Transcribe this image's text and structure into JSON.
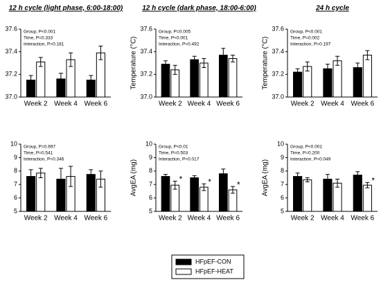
{
  "legend": [
    {
      "name": "HFpEF-CON",
      "color": "#000000"
    },
    {
      "name": "HFpEF-HEAT",
      "color": "#ffffff"
    }
  ],
  "chart_data": [
    {
      "type": "bar",
      "title": "12 h cycle (light phase, 6:00-18:00)",
      "categories": [
        "Week 2",
        "Week 4",
        "Week 6"
      ],
      "annotations": [
        "Group, P<0.001",
        "Time, P=0.333",
        "Interaction, P=0.181"
      ],
      "series": [
        {
          "values": [
            37.15,
            37.16,
            37.15
          ],
          "errors": [
            0.04,
            0.05,
            0.04
          ]
        },
        {
          "values": [
            37.31,
            37.33,
            37.39
          ],
          "errors": [
            0.04,
            0.06,
            0.06
          ]
        }
      ],
      "ylim": [
        37.0,
        37.6
      ],
      "yticks": [
        {
          "value": 37.0,
          "label": "37.0"
        },
        {
          "value": 37.2,
          "label": "37.2"
        },
        {
          "value": 37.4,
          "label": "37.4"
        },
        {
          "value": 37.6,
          "label": "37.6"
        }
      ]
    },
    {
      "type": "bar",
      "title": "12 h cycle (dark phase, 18:00-6:00)",
      "ylabel": "Temperature (°C)",
      "categories": [
        "Week 2",
        "Week 4",
        "Week 6"
      ],
      "annotations": [
        "Group, P=0.005",
        "Time, P<0.001",
        "Interaction, P=0.492"
      ],
      "series": [
        {
          "values": [
            37.29,
            37.33,
            37.37
          ],
          "errors": [
            0.03,
            0.03,
            0.06
          ]
        },
        {
          "values": [
            37.24,
            37.3,
            37.34
          ],
          "errors": [
            0.04,
            0.04,
            0.03
          ]
        }
      ],
      "ylim": [
        37.0,
        37.6
      ],
      "yticks": [
        {
          "value": 37.0,
          "label": "37.0"
        },
        {
          "value": 37.2,
          "label": "37.2"
        },
        {
          "value": 37.4,
          "label": "37.4"
        },
        {
          "value": 37.6,
          "label": "37.6"
        }
      ]
    },
    {
      "type": "bar",
      "title": "24 h cycle",
      "ylabel": "Temperature (°C)",
      "categories": [
        "Week 2",
        "Week 4",
        "Week 6"
      ],
      "annotations": [
        "Group, P<0.001",
        "Time, P=0.002",
        "Interaction, P=0.197"
      ],
      "series": [
        {
          "values": [
            37.22,
            37.25,
            37.26
          ],
          "errors": [
            0.03,
            0.04,
            0.04
          ]
        },
        {
          "values": [
            37.27,
            37.32,
            37.37
          ],
          "errors": [
            0.04,
            0.04,
            0.04
          ]
        }
      ],
      "ylim": [
        37.0,
        37.6
      ],
      "yticks": [
        {
          "value": 37.0,
          "label": "37.0"
        },
        {
          "value": 37.2,
          "label": "37.2"
        },
        {
          "value": 37.4,
          "label": "37.4"
        },
        {
          "value": 37.6,
          "label": "37.6"
        }
      ]
    },
    {
      "type": "bar",
      "categories": [
        "Week 2",
        "Week 4",
        "Week 6"
      ],
      "annotations": [
        "Group, P=0.697",
        "Time, P=0.541",
        "Interaction, P=0.346"
      ],
      "series": [
        {
          "values": [
            7.6,
            7.4,
            7.75
          ],
          "errors": [
            0.5,
            0.8,
            0.35
          ]
        },
        {
          "values": [
            7.85,
            7.6,
            7.4
          ],
          "errors": [
            0.35,
            0.75,
            0.6
          ]
        }
      ],
      "ylim": [
        5,
        10
      ],
      "yticks": [
        5,
        6,
        7,
        8,
        9,
        10
      ]
    },
    {
      "type": "bar",
      "ylabel": "AvgEA (mg)",
      "categories": [
        "Week 2",
        "Week 4",
        "Week 6"
      ],
      "annotations": [
        "Group, P<0.01",
        "Time, P=0.503",
        "Interaction, P=0.017"
      ],
      "series": [
        {
          "values": [
            7.6,
            7.5,
            7.8
          ],
          "errors": [
            0.15,
            0.15,
            0.35
          ]
        },
        {
          "values": [
            6.95,
            6.8,
            6.6
          ],
          "errors": [
            0.3,
            0.25,
            0.25
          ],
          "significance": [
            "*",
            "*",
            "*"
          ]
        }
      ],
      "ylim": [
        5,
        10
      ],
      "yticks": [
        5,
        6,
        7,
        8,
        9,
        10
      ]
    },
    {
      "type": "bar",
      "ylabel": "AvgEA (mg)",
      "categories": [
        "Week 2",
        "Week 4",
        "Week 6"
      ],
      "annotations": [
        "Group, P<0.001",
        "Time, P=0.200",
        "Interaction, P=0.049"
      ],
      "series": [
        {
          "values": [
            7.6,
            7.4,
            7.7
          ],
          "errors": [
            0.25,
            0.35,
            0.25
          ]
        },
        {
          "values": [
            7.35,
            7.1,
            6.95
          ],
          "errors": [
            0.15,
            0.3,
            0.2
          ],
          "significance": [
            null,
            null,
            "*"
          ]
        }
      ],
      "ylim": [
        5,
        10
      ],
      "yticks": [
        5,
        6,
        7,
        8,
        9,
        10
      ]
    }
  ]
}
